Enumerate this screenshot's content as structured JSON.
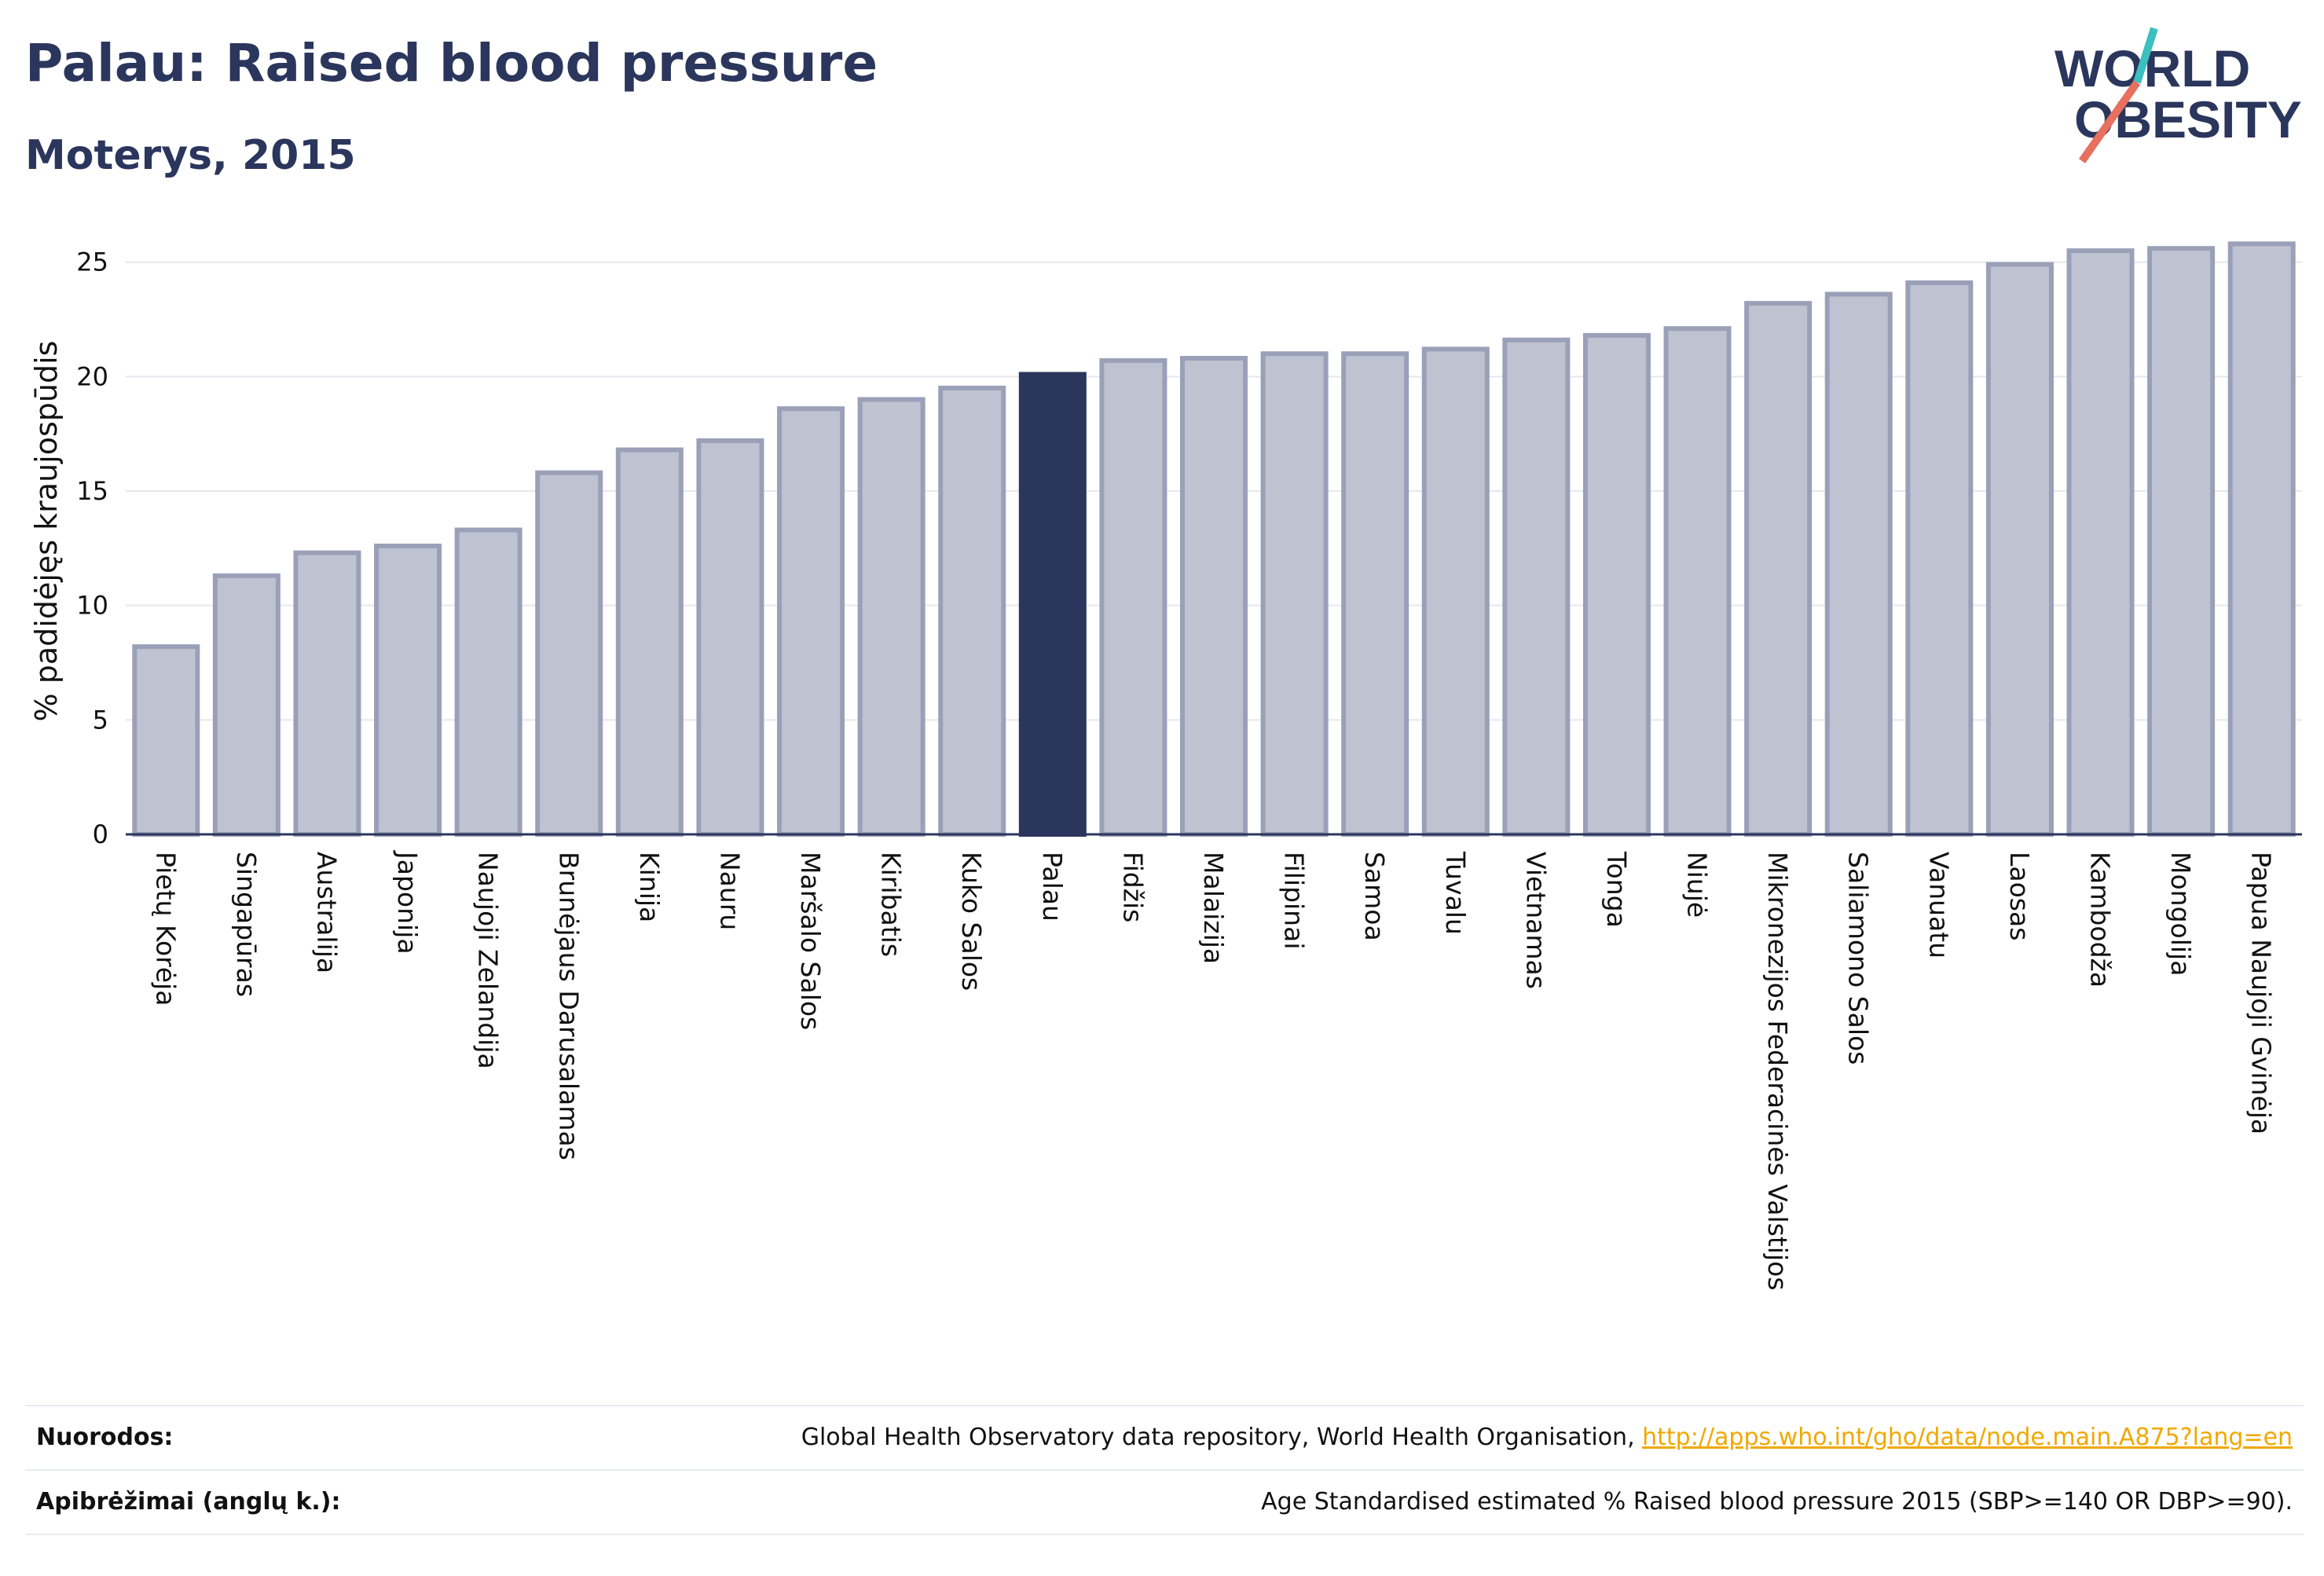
{
  "header": {
    "title": "Palau: Raised blood pressure",
    "subtitle": "Moterys, 2015"
  },
  "logo": {
    "line1": "WORLD",
    "line2": "OBESITY",
    "colors": {
      "text": "#2b365d",
      "slash_teal": "#3dbfc0",
      "slash_coral": "#e8705f"
    }
  },
  "colors": {
    "bar": "#bfc3d1",
    "bar_border": "#9aa0b8",
    "highlight": "#2b365d",
    "grid": "#e6e8ee",
    "axis": "#2b365d"
  },
  "chart_data": {
    "type": "bar",
    "title": "Palau: Raised blood pressure",
    "subtitle": "Moterys, 2015",
    "xlabel": "",
    "ylabel": "% padidėjęs kraujospūdis",
    "ylim": [
      0,
      26.5
    ],
    "yticks": [
      0,
      5,
      10,
      15,
      20,
      25
    ],
    "grid": true,
    "highlight": "Palau",
    "categories": [
      "Pietų Korėja",
      "Singapūras",
      "Australija",
      "Japonija",
      "Naujoji Zelandija",
      "Brunėjaus Darusalamas",
      "Kinija",
      "Nauru",
      "Maršalo Salos",
      "Kiribatis",
      "Kuko Salos",
      "Palau",
      "Fidžis",
      "Malaizija",
      "Filipinai",
      "Samoa",
      "Tuvalu",
      "Vietnamas",
      "Tonga",
      "Niujė",
      "Mikronezijos Federacinės Valstijos",
      "Saliamono Salos",
      "Vanuatu",
      "Laosas",
      "Kambodža",
      "Mongolija",
      "Papua Naujoji Gvinėja"
    ],
    "values": [
      8.2,
      11.3,
      12.3,
      12.6,
      13.3,
      15.8,
      16.8,
      17.2,
      18.6,
      19.0,
      19.5,
      20.1,
      20.7,
      20.8,
      21.0,
      21.0,
      21.2,
      21.6,
      21.8,
      22.1,
      23.2,
      23.6,
      24.1,
      24.9,
      25.5,
      25.6,
      25.8
    ]
  },
  "footer": {
    "sources_label": "Nuorodos:",
    "sources_text": "Global Health Observatory data repository, World Health Organisation, ",
    "sources_link": "http://apps.who.int/gho/data/node.main.A875?lang=en",
    "definitions_label": "Apibrėžimai (anglų k.):",
    "definitions_text": "Age Standardised estimated % Raised blood pressure 2015 (SBP>=140 OR DBP>=90)."
  }
}
